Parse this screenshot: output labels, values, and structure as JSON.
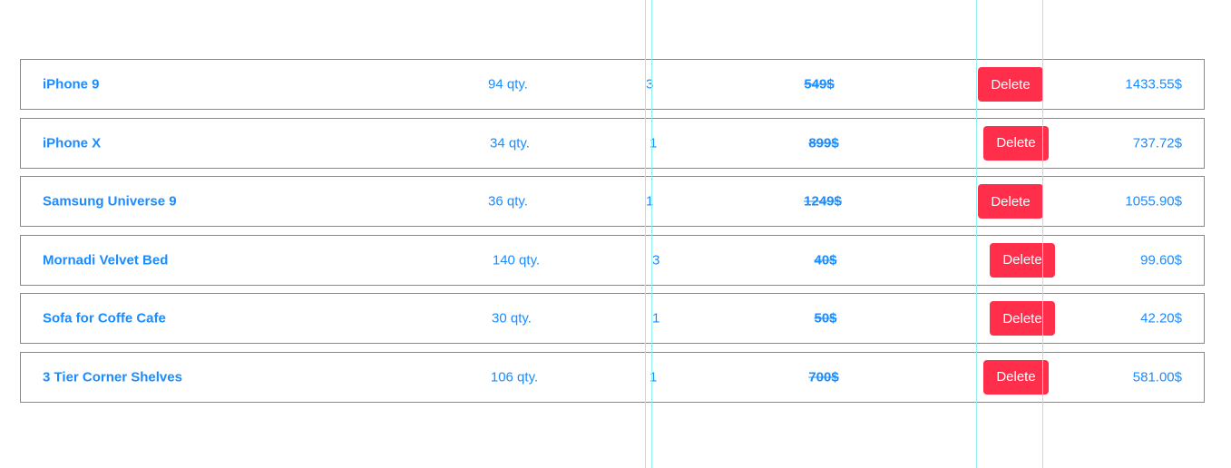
{
  "cart": {
    "rows": [
      {
        "name": "iPhone 9",
        "qty": "94 qty.",
        "count": "3",
        "price": "549$",
        "delete_label": "Delete",
        "total": "1433.55$"
      },
      {
        "name": "iPhone X",
        "qty": "34 qty.",
        "count": "1",
        "price": "899$",
        "delete_label": "Delete",
        "total": "737.72$"
      },
      {
        "name": "Samsung Universe 9",
        "qty": "36 qty.",
        "count": "1",
        "price": "1249$",
        "delete_label": "Delete",
        "total": "1055.90$"
      },
      {
        "name": "Mornadi Velvet Bed",
        "qty": "140 qty.",
        "count": "3",
        "price": "40$",
        "delete_label": "Delete",
        "total": "99.60$"
      },
      {
        "name": "Sofa for Coffe Cafe",
        "qty": "30 qty.",
        "count": "1",
        "price": "50$",
        "delete_label": "Delete",
        "total": "42.20$"
      },
      {
        "name": "3 Tier Corner Shelves",
        "qty": "106 qty.",
        "count": "1",
        "price": "700$",
        "delete_label": "Delete",
        "total": "581.00$"
      }
    ]
  },
  "colors": {
    "text_accent": "#1a8cff",
    "delete_button": "#ff2e4a",
    "row_border": "#8a8a8a",
    "guide_line": "#8ef2f5"
  }
}
